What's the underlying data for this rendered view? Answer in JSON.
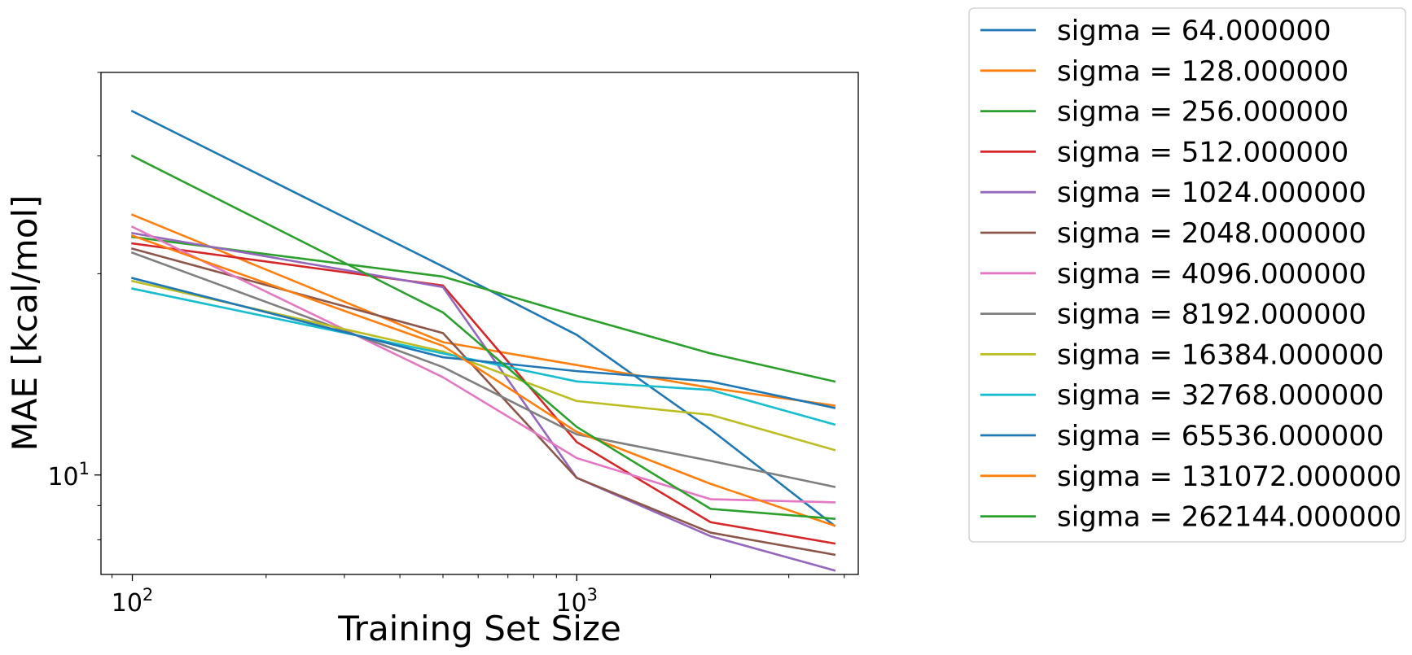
{
  "chart_data": {
    "type": "line",
    "title": "",
    "xlabel": "Training Set Size",
    "ylabel": "MAE [kcal/mol]",
    "xscale": "log",
    "yscale": "log",
    "xlim": [
      85,
      4300
    ],
    "ylim": [
      7.1,
      40
    ],
    "grid": false,
    "legend_placement": "outside-right",
    "x": [
      100,
      500,
      1000,
      2000,
      3800
    ],
    "x_ticks": [
      {
        "value": 100,
        "base": "10",
        "exp": "2"
      },
      {
        "value": 1000,
        "base": "10",
        "exp": "3"
      }
    ],
    "y_ticks": [
      {
        "value": 10,
        "base": "10",
        "exp": "1"
      }
    ],
    "series": [
      {
        "name": "sigma = 64.000000",
        "color": "#1f77b4",
        "values": [
          35.0,
          20.5,
          16.2,
          11.7,
          8.4
        ]
      },
      {
        "name": "sigma = 128.000000",
        "color": "#ff7f0e",
        "values": [
          24.5,
          15.8,
          14.6,
          13.5,
          12.7
        ]
      },
      {
        "name": "sigma = 256.000000",
        "color": "#2ca02c",
        "values": [
          22.7,
          19.8,
          17.3,
          15.2,
          13.8
        ]
      },
      {
        "name": "sigma = 512.000000",
        "color": "#d62728",
        "values": [
          22.2,
          19.2,
          11.2,
          8.5,
          7.9
        ]
      },
      {
        "name": "sigma = 1024.000000",
        "color": "#9467bd",
        "values": [
          23.0,
          19.1,
          9.9,
          8.1,
          7.2
        ]
      },
      {
        "name": "sigma = 2048.000000",
        "color": "#8c564b",
        "values": [
          21.8,
          16.3,
          9.9,
          8.2,
          7.6
        ]
      },
      {
        "name": "sigma = 4096.000000",
        "color": "#e377c2",
        "values": [
          23.5,
          14.0,
          10.6,
          9.2,
          9.1
        ]
      },
      {
        "name": "sigma = 8192.000000",
        "color": "#7f7f7f",
        "values": [
          21.5,
          14.5,
          11.5,
          10.5,
          9.6
        ]
      },
      {
        "name": "sigma = 16384.000000",
        "color": "#bcbd22",
        "values": [
          19.5,
          15.3,
          12.9,
          12.3,
          10.9
        ]
      },
      {
        "name": "sigma = 32768.000000",
        "color": "#17becf",
        "values": [
          19.0,
          15.2,
          13.8,
          13.4,
          11.9
        ]
      },
      {
        "name": "sigma = 65536.000000",
        "color": "#1f77b4",
        "values": [
          19.7,
          15.0,
          14.3,
          13.8,
          12.6
        ]
      },
      {
        "name": "sigma = 131072.000000",
        "color": "#ff7f0e",
        "values": [
          22.8,
          15.6,
          11.6,
          9.7,
          8.4
        ]
      },
      {
        "name": "sigma = 262144.000000",
        "color": "#2ca02c",
        "values": [
          30.0,
          17.5,
          11.8,
          8.9,
          8.6
        ]
      }
    ]
  }
}
